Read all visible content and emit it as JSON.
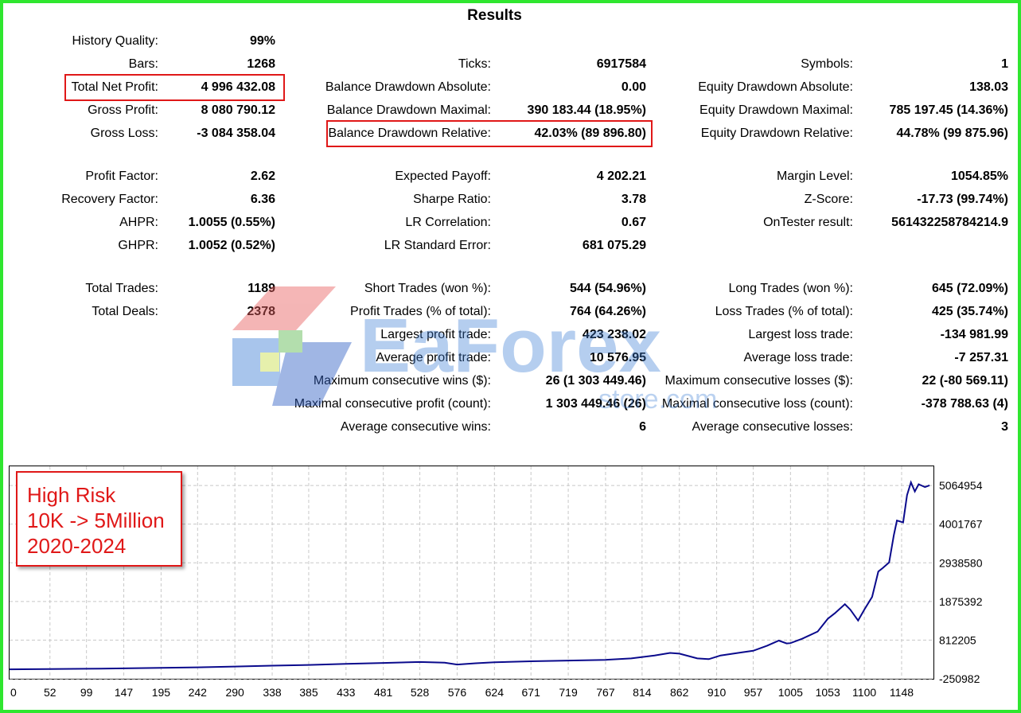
{
  "title": "Results",
  "rows": [
    {
      "cells": [
        {
          "label": "History Quality:",
          "value": "99%"
        },
        null,
        null
      ]
    },
    {
      "cells": [
        {
          "label": "Bars:",
          "value": "1268"
        },
        {
          "label": "Ticks:",
          "value": "6917584"
        },
        {
          "label": "Symbols:",
          "value": "1"
        }
      ]
    },
    {
      "cells": [
        {
          "label": "Total Net Profit:",
          "value": "4 996 432.08",
          "highlight": true
        },
        {
          "label": "Balance Drawdown Absolute:",
          "value": "0.00"
        },
        {
          "label": "Equity Drawdown Absolute:",
          "value": "138.03"
        }
      ]
    },
    {
      "cells": [
        {
          "label": "Gross Profit:",
          "value": "8 080 790.12"
        },
        {
          "label": "Balance Drawdown Maximal:",
          "value": "390 183.44 (18.95%)"
        },
        {
          "label": "Equity Drawdown Maximal:",
          "value": "785 197.45 (14.36%)"
        }
      ]
    },
    {
      "cells": [
        {
          "label": "Gross Loss:",
          "value": "-3 084 358.04"
        },
        {
          "label": "Balance Drawdown Relative:",
          "value": "42.03% (89 896.80)",
          "highlight": true
        },
        {
          "label": "Equity Drawdown Relative:",
          "value": "44.78% (99 875.96)"
        }
      ]
    },
    {
      "cells": [
        {
          "label": "Profit Factor:",
          "value": "2.62"
        },
        {
          "label": "Expected Payoff:",
          "value": "4 202.21"
        },
        {
          "label": "Margin Level:",
          "value": "1054.85%"
        }
      ]
    },
    {
      "cells": [
        {
          "label": "Recovery Factor:",
          "value": "6.36"
        },
        {
          "label": "Sharpe Ratio:",
          "value": "3.78"
        },
        {
          "label": "Z-Score:",
          "value": "-17.73 (99.74%)"
        }
      ]
    },
    {
      "cells": [
        {
          "label": "AHPR:",
          "value": "1.0055 (0.55%)"
        },
        {
          "label": "LR Correlation:",
          "value": "0.67"
        },
        {
          "label": "OnTester result:",
          "value": "561432258784214.9"
        }
      ]
    },
    {
      "cells": [
        {
          "label": "GHPR:",
          "value": "1.0052 (0.52%)"
        },
        {
          "label": "LR Standard Error:",
          "value": "681 075.29"
        },
        null
      ]
    },
    {
      "cells": [
        {
          "label": "Total Trades:",
          "value": "1189"
        },
        {
          "label": "Short Trades (won %):",
          "value": "544 (54.96%)"
        },
        {
          "label": "Long Trades (won %):",
          "value": "645 (72.09%)"
        }
      ]
    },
    {
      "cells": [
        {
          "label": "Total Deals:",
          "value": "2378"
        },
        {
          "label": "Profit Trades (% of total):",
          "value": "764 (64.26%)"
        },
        {
          "label": "Loss Trades (% of total):",
          "value": "425 (35.74%)"
        }
      ]
    },
    {
      "cells": [
        null,
        {
          "label": "Largest profit trade:",
          "value": "423 238.02"
        },
        {
          "label": "Largest loss trade:",
          "value": "-134 981.99"
        }
      ]
    },
    {
      "cells": [
        null,
        {
          "label": "Average profit trade:",
          "value": "10 576.95"
        },
        {
          "label": "Average loss trade:",
          "value": "-7 257.31"
        }
      ]
    },
    {
      "cells": [
        null,
        {
          "label": "Maximum consecutive wins ($):",
          "value": "26 (1 303 449.46)"
        },
        {
          "label": "Maximum consecutive losses ($):",
          "value": "22 (-80 569.11)"
        }
      ]
    },
    {
      "cells": [
        null,
        {
          "label": "Maximal consecutive profit (count):",
          "value": "1 303 449.46 (26)"
        },
        {
          "label": "Maximal consecutive loss (count):",
          "value": "-378 788.63 (4)"
        }
      ]
    },
    {
      "cells": [
        null,
        {
          "label": "Average consecutive wins:",
          "value": "6"
        },
        {
          "label": "Average consecutive losses:",
          "value": "3"
        }
      ]
    }
  ],
  "watermark": {
    "text": "EaForex",
    "subtext": "store.com"
  },
  "annotation": {
    "lines": [
      "High Risk",
      "10K -> 5Million",
      "2020-2024"
    ],
    "color": "#e01818"
  },
  "colors": {
    "frame": "#2fe62f",
    "highlight": "#e01818",
    "balance_line": "#0a0a8c",
    "grid": "#c8c8c8"
  },
  "chart_data": {
    "type": "line",
    "title": "",
    "x_ticks": [
      "0",
      "52",
      "99",
      "147",
      "195",
      "242",
      "290",
      "338",
      "385",
      "433",
      "481",
      "528",
      "576",
      "624",
      "671",
      "719",
      "767",
      "814",
      "862",
      "910",
      "957",
      "1005",
      "1053",
      "1100",
      "1148"
    ],
    "y_ticks": [
      "5064954",
      "4001767",
      "2938580",
      "1875392",
      "812205",
      "-250982"
    ],
    "ylim": [
      -250982,
      5592000
    ],
    "xlim": [
      0,
      1189
    ],
    "grid": true,
    "series": [
      {
        "color": "#0a0a8c",
        "points": [
          [
            0,
            10000
          ],
          [
            52,
            15000
          ],
          [
            99,
            25000
          ],
          [
            147,
            35000
          ],
          [
            195,
            50000
          ],
          [
            242,
            65000
          ],
          [
            290,
            85000
          ],
          [
            338,
            110000
          ],
          [
            385,
            130000
          ],
          [
            433,
            160000
          ],
          [
            481,
            185000
          ],
          [
            528,
            210000
          ],
          [
            560,
            190000
          ],
          [
            576,
            140000
          ],
          [
            600,
            175000
          ],
          [
            624,
            205000
          ],
          [
            671,
            230000
          ],
          [
            719,
            250000
          ],
          [
            767,
            270000
          ],
          [
            800,
            310000
          ],
          [
            830,
            390000
          ],
          [
            850,
            460000
          ],
          [
            862,
            440000
          ],
          [
            885,
            310000
          ],
          [
            900,
            290000
          ],
          [
            915,
            390000
          ],
          [
            940,
            470000
          ],
          [
            957,
            520000
          ],
          [
            975,
            660000
          ],
          [
            990,
            800000
          ],
          [
            1000,
            720000
          ],
          [
            1005,
            730000
          ],
          [
            1020,
            850000
          ],
          [
            1040,
            1050000
          ],
          [
            1053,
            1400000
          ],
          [
            1062,
            1550000
          ],
          [
            1075,
            1800000
          ],
          [
            1082,
            1650000
          ],
          [
            1092,
            1350000
          ],
          [
            1100,
            1650000
          ],
          [
            1110,
            2000000
          ],
          [
            1118,
            2700000
          ],
          [
            1124,
            2800000
          ],
          [
            1132,
            2950000
          ],
          [
            1138,
            3700000
          ],
          [
            1142,
            4100000
          ],
          [
            1150,
            4050000
          ],
          [
            1155,
            4800000
          ],
          [
            1160,
            5150000
          ],
          [
            1165,
            4900000
          ],
          [
            1170,
            5100000
          ],
          [
            1178,
            5020000
          ],
          [
            1184,
            5070000
          ]
        ]
      }
    ]
  }
}
